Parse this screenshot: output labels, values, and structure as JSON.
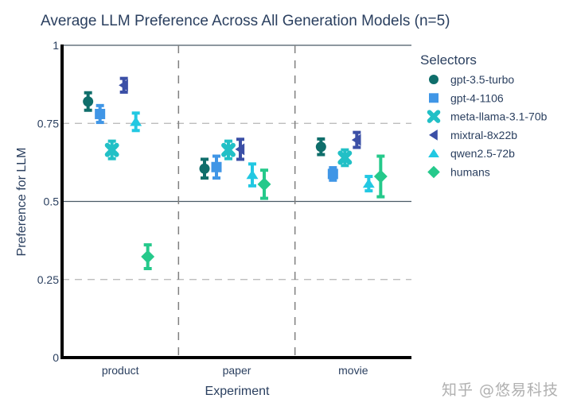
{
  "chart_data": {
    "type": "scatter",
    "title": "Average LLM Preference Across All Generation Models (n=5)",
    "xlabel": "Experiment",
    "ylabel": "Preference for LLM",
    "categories": [
      "product",
      "paper",
      "movie"
    ],
    "ylim": [
      0,
      1
    ],
    "yticks": [
      0,
      0.25,
      0.5,
      0.75,
      1
    ],
    "ytick_labels": [
      "0",
      "0.25",
      "0.5",
      "0.75",
      "1"
    ],
    "grid": true,
    "legend": {
      "title": "Selectors",
      "placement": "right"
    },
    "series": [
      {
        "name": "gpt-3.5-turbo",
        "marker": "circle",
        "color": "#0f6e6b",
        "values": [
          0.82,
          0.605,
          0.675
        ],
        "error": [
          0.028,
          0.03,
          0.025
        ]
      },
      {
        "name": "gpt-4-1106",
        "marker": "square",
        "color": "#4096e6",
        "values": [
          0.78,
          0.61,
          0.588
        ],
        "error": [
          0.027,
          0.035,
          0.02
        ]
      },
      {
        "name": "meta-llama-3.1-70b",
        "marker": "x",
        "color": "#22c0c6",
        "values": [
          0.665,
          0.665,
          0.64
        ],
        "error": [
          0.028,
          0.028,
          0.025
        ]
      },
      {
        "name": "mixtral-8x22b",
        "marker": "triangle-left",
        "color": "#3b4fa6",
        "values": [
          0.872,
          0.667,
          0.697
        ],
        "error": [
          0.022,
          0.032,
          0.024
        ]
      },
      {
        "name": "qwen2.5-72b",
        "marker": "triangle-up",
        "color": "#22c8e2",
        "values": [
          0.755,
          0.585,
          0.557
        ],
        "error": [
          0.028,
          0.035,
          0.023
        ]
      },
      {
        "name": "humans",
        "marker": "diamond",
        "color": "#25c98b",
        "values": [
          0.323,
          0.555,
          0.58
        ],
        "error": [
          0.038,
          0.045,
          0.065
        ]
      }
    ]
  },
  "watermark": "知乎 @悠易科技"
}
